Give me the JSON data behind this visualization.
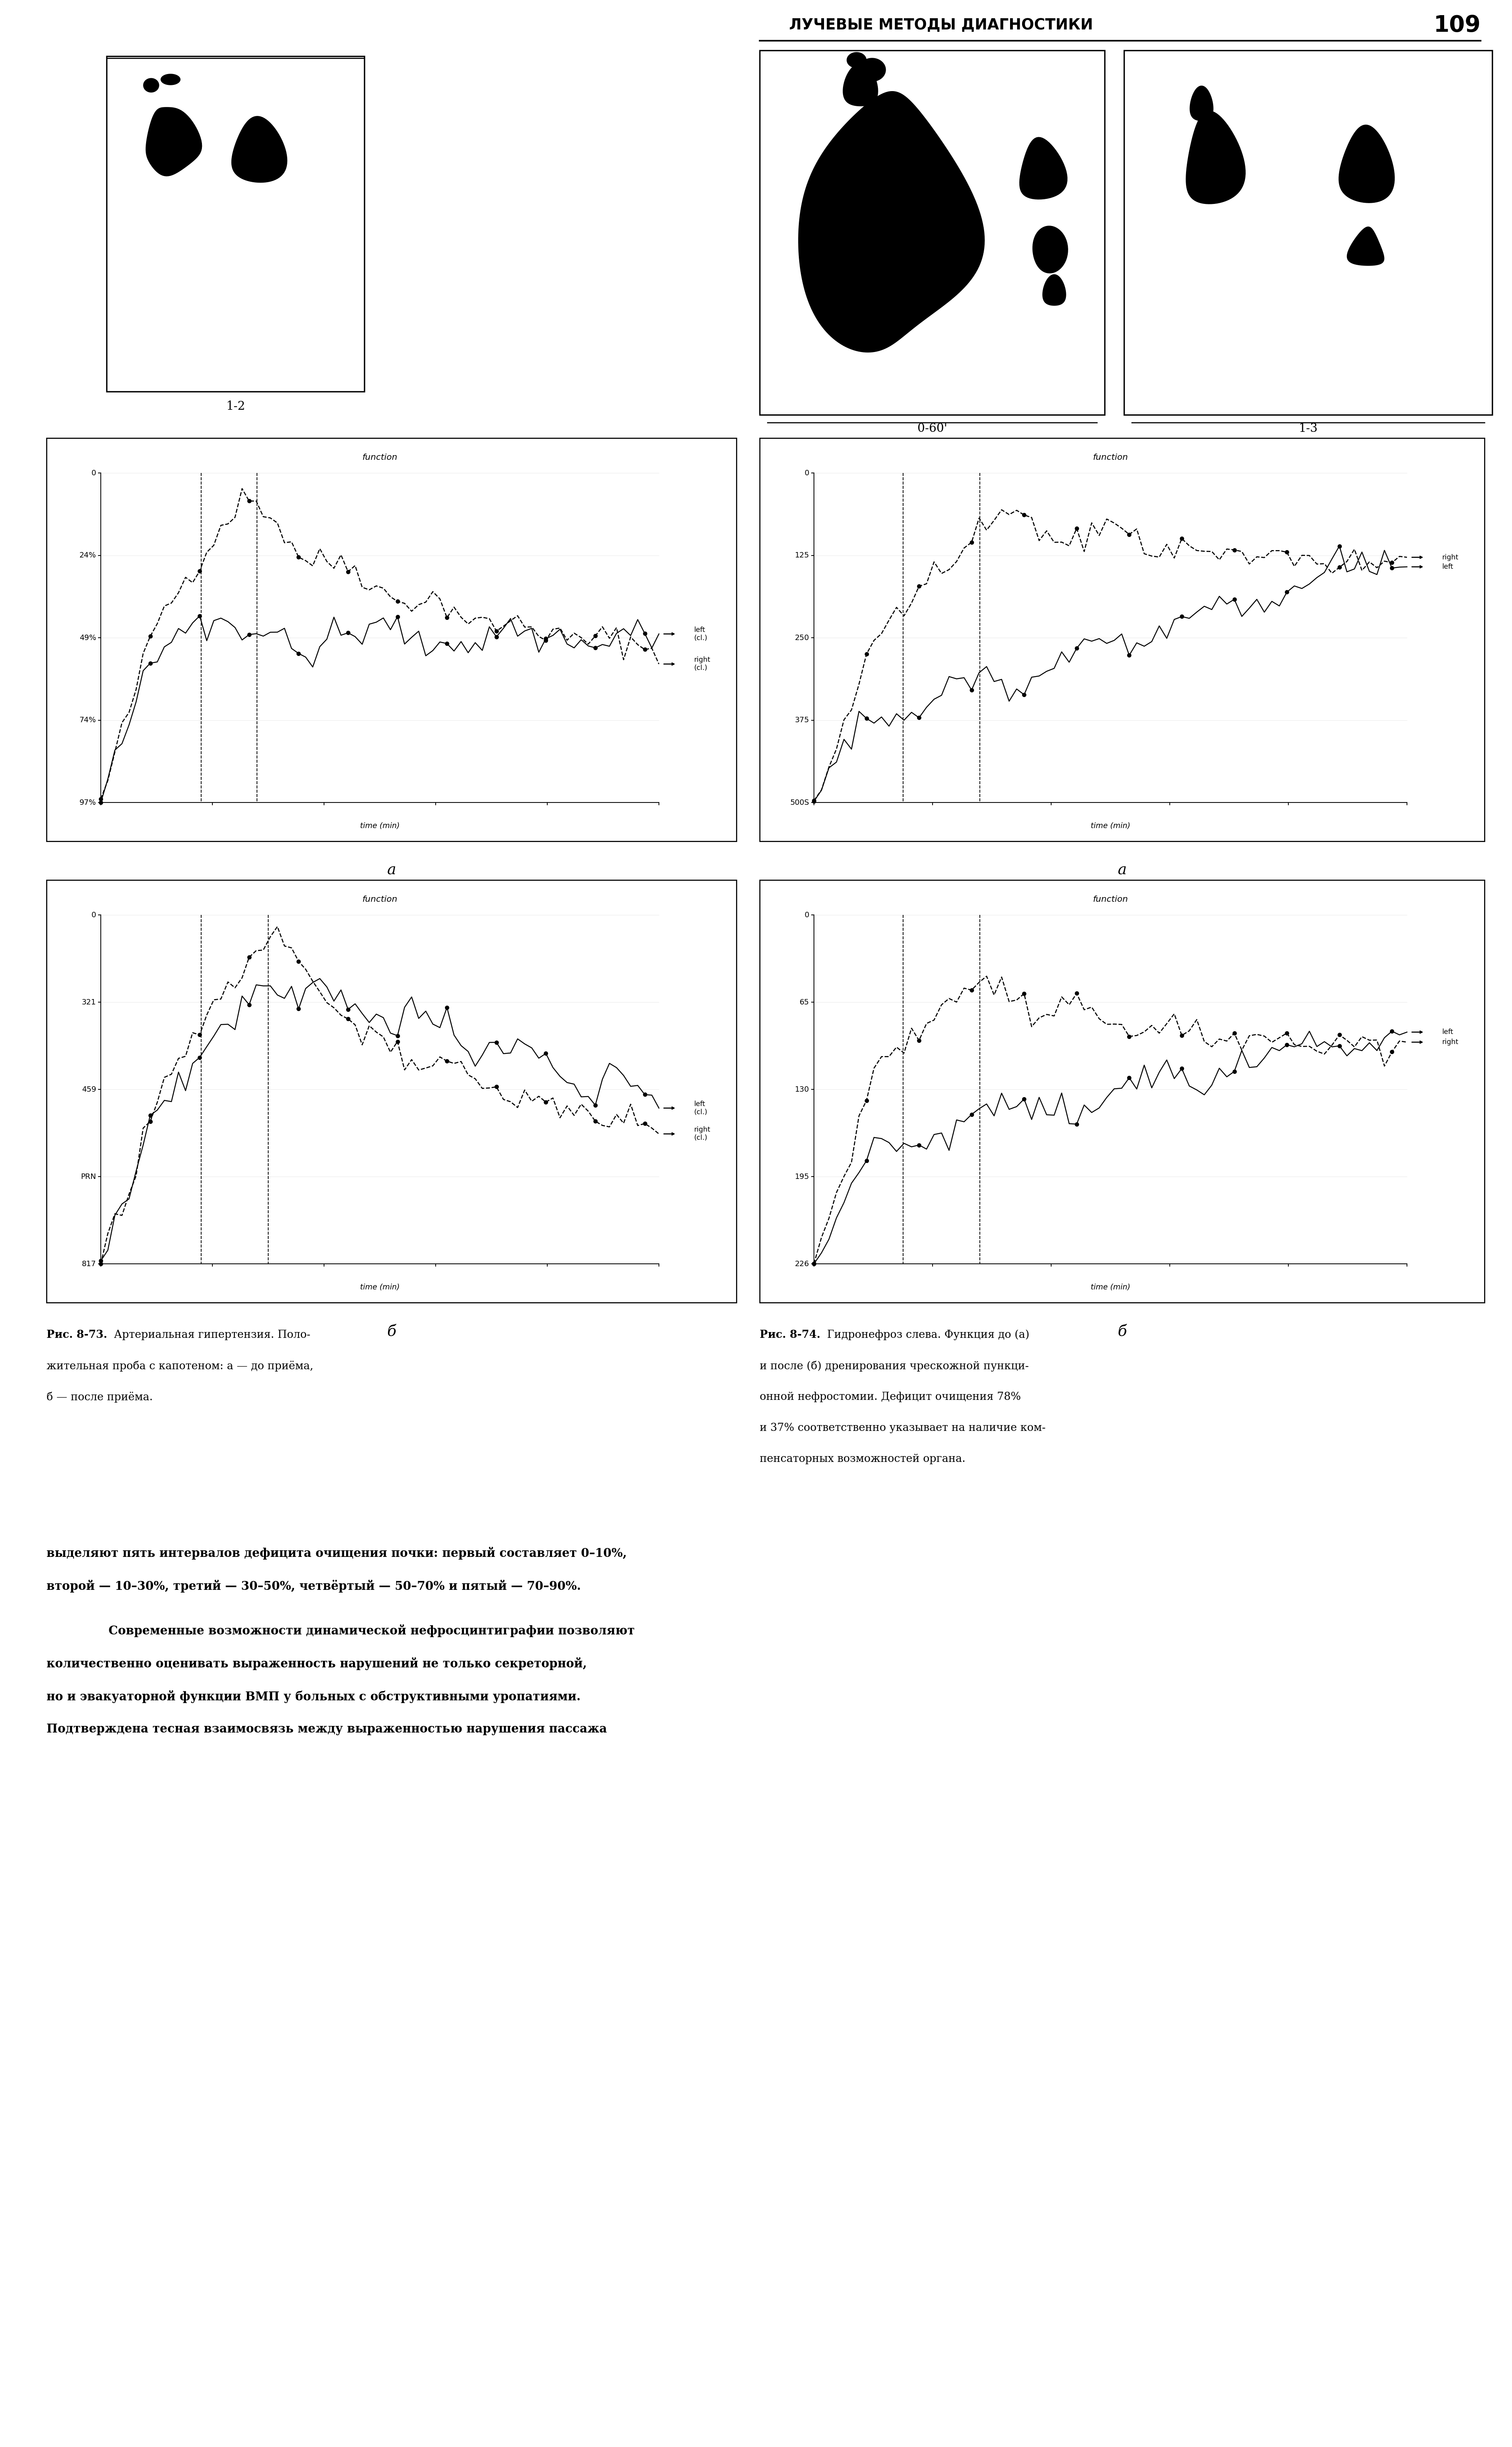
{
  "page_bg": "#ffffff",
  "header_text": "ЛУЧЕВЫЕ МЕТОДЫ ДИАГНОСТИКИ",
  "header_page": "109",
  "fig73_caption_bold": "Рис. 8-73.",
  "fig73_caption_normal": " Артериальная гипертензия. Положительная проба с капотеном: а — до приёма, б — после приёма.",
  "fig74_caption_bold": "Рис. 8-74.",
  "fig74_caption_normal": " Гидронефроз слева. Функция до (а) и после (б) дренирования чрескожной пункционной нефростомии. Дефицит очищения 78% и 37% соответственно указывает на наличие компенсаторных возможностей органа.",
  "body_bold1": "выделяют пять интервалов дефицита очищения почки: первый составляет 0–10%,",
  "body_bold2": "второй — 10–30%, третий — 30–50%, четвёртый — 50–70% и пятый — 70–90%.",
  "body_indent": "    Современные возможности динамической нефросцинтиграфии позволяют количественно оценивать выраженность нарушений не только секреторной, но и эвакуаторной функции ВМП у больных с обструктивными уропатиями. Подтверждена тесная взаимосвязь между выраженностью нарушения пассажа",
  "left_label": "1-2",
  "right_label1": "0-60'",
  "right_label2": "1-3",
  "chart1_ylabels": [
    "97%",
    "74%",
    "49%",
    "24%",
    "0"
  ],
  "chart2_ylabels": [
    "500S",
    "375",
    "250",
    "125",
    "0"
  ],
  "chart3_ylabels": [
    "817",
    "PRN",
    "459",
    "321",
    "0"
  ],
  "chart4_ylabels": [
    "226",
    "195",
    "130",
    "65",
    "0"
  ],
  "chart1_title": "function",
  "chart2_title": "function",
  "chart3_title": "function",
  "chart4_title": "function",
  "chart1_xlabel": "time (min)",
  "chart2_xlabel": "time (min)",
  "chart3_xlabel": "time (min)",
  "chart4_xlabel": "time (min)"
}
